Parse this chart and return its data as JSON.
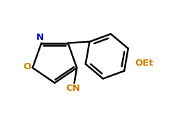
{
  "bg_color": "#ffffff",
  "line_color": "#000000",
  "N_color": "#0000cd",
  "O_color": "#cc8000",
  "CN_color": "#cc8000",
  "OEt_color": "#cc8000",
  "line_width": 1.8,
  "fig_width": 2.71,
  "fig_height": 1.79,
  "dpi": 100,
  "xlim": [
    0.0,
    10.0
  ],
  "ylim": [
    0.0,
    7.0
  ]
}
